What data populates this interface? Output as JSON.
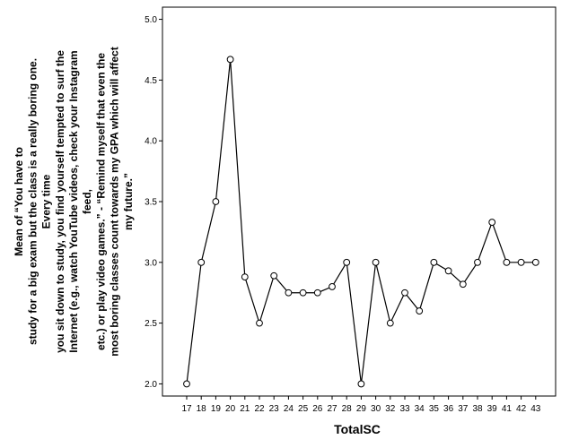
{
  "chart_data": {
    "type": "line",
    "title": "",
    "xlabel": "TotalSC",
    "ylabel_lines": [
      "Mean of “You have to",
      "study for a big exam but the class is a really boring one.",
      "Every time",
      "you sit down to study, you find yourself tempted to surf the",
      "Internet (e.g., watch YouTube videos, check your Instagram",
      "feed,",
      "etc.) or play video games.” - “Remind myself that even the",
      "most boring classes count towards my GPA which will affect",
      "my future.”"
    ],
    "categories": [
      "17",
      "18",
      "19",
      "20",
      "21",
      "22",
      "23",
      "24",
      "25",
      "26",
      "27",
      "28",
      "29",
      "30",
      "32",
      "33",
      "34",
      "35",
      "36",
      "37",
      "38",
      "39",
      "41",
      "42",
      "43"
    ],
    "series": [
      {
        "values": [
          2.0,
          3.0,
          3.5,
          4.67,
          2.88,
          2.5,
          2.89,
          2.75,
          2.75,
          2.75,
          2.8,
          3.0,
          2.0,
          3.0,
          2.5,
          2.75,
          2.6,
          3.0,
          2.93,
          2.82,
          3.0,
          3.33,
          3.0,
          3.0,
          3.0
        ]
      }
    ],
    "yticks": [
      "2.0",
      "2.5",
      "3.0",
      "3.5",
      "4.0",
      "4.5",
      "5.0"
    ],
    "ylim": [
      1.9,
      5.1
    ],
    "grid": false,
    "legend": "none",
    "line_color": "#000000",
    "marker": "open-circle"
  }
}
